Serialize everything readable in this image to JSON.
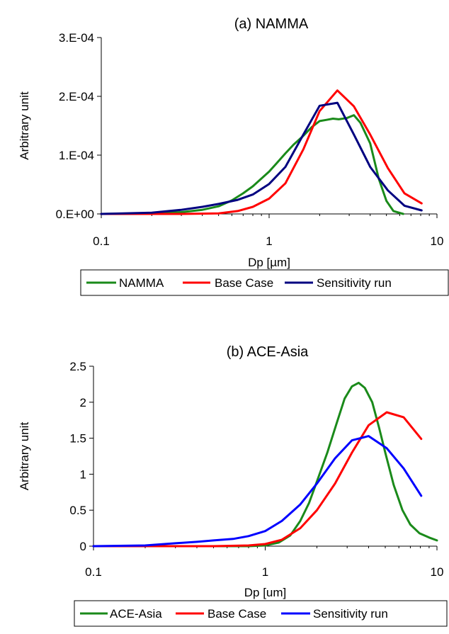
{
  "chart_data": [
    {
      "type": "line",
      "title": "(a) NAMMA",
      "xlabel": "Dp [µm]",
      "ylabel": "Arbitrary unit",
      "xscale": "log",
      "xlim": [
        0.1,
        10
      ],
      "ylim": [
        0,
        0.0003
      ],
      "x_ticks": [
        0.1,
        1,
        10
      ],
      "x_tick_labels": [
        "0.1",
        "1",
        "10"
      ],
      "y_ticks": [
        0,
        0.0001,
        0.0002,
        0.0003
      ],
      "y_tick_labels": [
        "0.E+00",
        "1.E-04",
        "2.E-04",
        "3.E-04"
      ],
      "grid": false,
      "legend_position": "bottom",
      "series": [
        {
          "name": "NAMMA",
          "color": "#1a8a1a",
          "points": [
            [
              0.1,
              0
            ],
            [
              0.2,
              1e-06
            ],
            [
              0.3,
              3e-06
            ],
            [
              0.4,
              7e-06
            ],
            [
              0.5,
              1.3e-05
            ],
            [
              0.6,
              2.3e-05
            ],
            [
              0.7,
              3.5e-05
            ],
            [
              0.8,
              4.7e-05
            ],
            [
              1.0,
              7.2e-05
            ],
            [
              1.1,
              8.5e-05
            ],
            [
              1.25,
              0.000103
            ],
            [
              1.4,
              0.000118
            ],
            [
              1.6,
              0.000133
            ],
            [
              1.8,
              0.000148
            ],
            [
              2.0,
              0.000158
            ],
            [
              2.2,
              0.00016
            ],
            [
              2.4,
              0.000162
            ],
            [
              2.6,
              0.000161
            ],
            [
              2.9,
              0.000163
            ],
            [
              3.2,
              0.000168
            ],
            [
              3.5,
              0.000155
            ],
            [
              4.0,
              0.00012
            ],
            [
              4.5,
              6e-05
            ],
            [
              5.0,
              2.2e-05
            ],
            [
              5.5,
              5e-06
            ],
            [
              6.3,
              0
            ]
          ]
        },
        {
          "name": "Base Case",
          "color": "#ff0000",
          "points": [
            [
              0.1,
              0
            ],
            [
              0.3,
              0
            ],
            [
              0.5,
              1e-06
            ],
            [
              0.65,
              5e-06
            ],
            [
              0.8,
              1.2e-05
            ],
            [
              1.0,
              2.6e-05
            ],
            [
              1.25,
              5.2e-05
            ],
            [
              1.6,
              0.00011
            ],
            [
              2.0,
              0.000175
            ],
            [
              2.55,
              0.00021
            ],
            [
              3.2,
              0.000183
            ],
            [
              4.0,
              0.000135
            ],
            [
              5.1,
              7.8e-05
            ],
            [
              6.4,
              3.5e-05
            ],
            [
              8.1,
              1.8e-05
            ]
          ]
        },
        {
          "name": "Sensitivity run",
          "color": "#000080",
          "points": [
            [
              0.1,
              0
            ],
            [
              0.2,
              2e-06
            ],
            [
              0.3,
              7e-06
            ],
            [
              0.4,
              1.2e-05
            ],
            [
              0.5,
              1.7e-05
            ],
            [
              0.65,
              2.4e-05
            ],
            [
              0.8,
              3.3e-05
            ],
            [
              1.0,
              5.1e-05
            ],
            [
              1.25,
              8e-05
            ],
            [
              1.6,
              0.000135
            ],
            [
              2.0,
              0.000184
            ],
            [
              2.55,
              0.000189
            ],
            [
              3.2,
              0.000135
            ],
            [
              4.0,
              8e-05
            ],
            [
              5.1,
              4e-05
            ],
            [
              6.4,
              1.4e-05
            ],
            [
              8.1,
              6e-06
            ]
          ]
        }
      ]
    },
    {
      "type": "line",
      "title": "(b) ACE-Asia",
      "xlabel": "Dp [um]",
      "ylabel": "Arbitrary unit",
      "xscale": "log",
      "xlim": [
        0.1,
        10
      ],
      "ylim": [
        0,
        2.5
      ],
      "x_ticks": [
        0.1,
        1,
        10
      ],
      "x_tick_labels": [
        "0.1",
        "1",
        "10"
      ],
      "y_ticks": [
        0,
        0.5,
        1,
        1.5,
        2,
        2.5
      ],
      "y_tick_labels": [
        "0",
        "0.5",
        "1",
        "1.5",
        "2",
        "2.5"
      ],
      "grid": false,
      "legend_position": "bottom",
      "series": [
        {
          "name": "ACE-Asia",
          "color": "#1a8a1a",
          "points": [
            [
              0.1,
              0
            ],
            [
              0.5,
              0
            ],
            [
              0.8,
              0
            ],
            [
              1.0,
              0.01
            ],
            [
              1.2,
              0.05
            ],
            [
              1.4,
              0.15
            ],
            [
              1.6,
              0.35
            ],
            [
              1.8,
              0.6
            ],
            [
              2.0,
              0.9
            ],
            [
              2.3,
              1.3
            ],
            [
              2.6,
              1.7
            ],
            [
              2.9,
              2.05
            ],
            [
              3.2,
              2.22
            ],
            [
              3.5,
              2.27
            ],
            [
              3.8,
              2.2
            ],
            [
              4.2,
              2.0
            ],
            [
              4.6,
              1.65
            ],
            [
              5.0,
              1.3
            ],
            [
              5.6,
              0.85
            ],
            [
              6.3,
              0.5
            ],
            [
              7.0,
              0.3
            ],
            [
              7.9,
              0.18
            ],
            [
              9.0,
              0.12
            ],
            [
              10,
              0.08
            ]
          ]
        },
        {
          "name": "Base Case",
          "color": "#ff0000",
          "points": [
            [
              0.1,
              0
            ],
            [
              0.5,
              0
            ],
            [
              0.8,
              0.01
            ],
            [
              1.0,
              0.03
            ],
            [
              1.25,
              0.09
            ],
            [
              1.6,
              0.25
            ],
            [
              2.0,
              0.5
            ],
            [
              2.55,
              0.87
            ],
            [
              3.2,
              1.3
            ],
            [
              4.0,
              1.68
            ],
            [
              5.1,
              1.86
            ],
            [
              6.4,
              1.79
            ],
            [
              8.1,
              1.49
            ]
          ]
        },
        {
          "name": "Sensitivity run",
          "color": "#0000ff",
          "points": [
            [
              0.1,
              0
            ],
            [
              0.2,
              0.01
            ],
            [
              0.3,
              0.04
            ],
            [
              0.4,
              0.06
            ],
            [
              0.5,
              0.08
            ],
            [
              0.65,
              0.1
            ],
            [
              0.8,
              0.14
            ],
            [
              1.0,
              0.21
            ],
            [
              1.25,
              0.35
            ],
            [
              1.6,
              0.58
            ],
            [
              2.0,
              0.87
            ],
            [
              2.55,
              1.22
            ],
            [
              3.2,
              1.47
            ],
            [
              4.0,
              1.53
            ],
            [
              5.1,
              1.36
            ],
            [
              6.4,
              1.08
            ],
            [
              8.1,
              0.7
            ]
          ]
        }
      ]
    }
  ]
}
